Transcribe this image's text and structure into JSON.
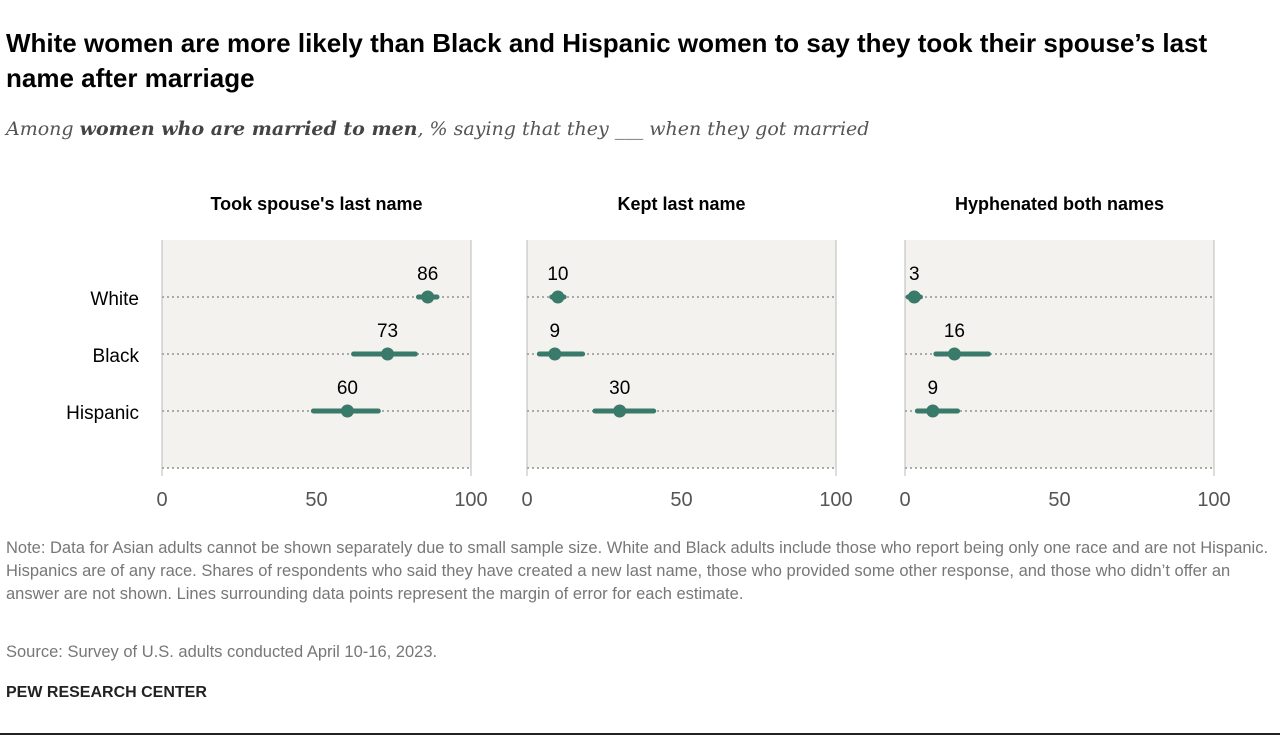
{
  "title": "White women are more likely than Black and Hispanic women to say they took their spouse’s last name after marriage",
  "subtitle": {
    "pre": "Among ",
    "bold": "women who are married to men",
    ",post": "",
    "post_text": ", % saying that they ___ when they got married"
  },
  "note": "Note: Data for Asian adults cannot be shown separately due to small sample size. White and Black adults include those who report being only one race and are not Hispanic. Hispanics are of any race. Shares of respondents who said they have created a new last name, those who provided some other response, and those who didn’t offer an answer are not shown. Lines surrounding data points represent the margin of error for each estimate.",
  "source": "Source: Survey of U.S. adults conducted April 10-16, 2023.",
  "brand": "PEW RESEARCH CENTER",
  "colors": {
    "point": "#3a7a6a",
    "panel": "#f3f2ee"
  },
  "chart_data": [
    {
      "type": "dot",
      "title": "Took spouse's last name",
      "categories": [
        "White",
        "Black",
        "Hispanic"
      ],
      "values": [
        86,
        73,
        60
      ],
      "ci": [
        [
          83,
          89
        ],
        [
          62,
          82
        ],
        [
          49,
          70
        ]
      ],
      "xlim": [
        0,
        100
      ],
      "xticks": [
        0,
        50,
        100
      ]
    },
    {
      "type": "dot",
      "title": "Kept last name",
      "categories": [
        "White",
        "Black",
        "Hispanic"
      ],
      "values": [
        10,
        9,
        30
      ],
      "ci": [
        [
          8,
          12
        ],
        [
          4,
          18
        ],
        [
          22,
          41
        ]
      ],
      "xlim": [
        0,
        100
      ],
      "xticks": [
        0,
        50,
        100
      ]
    },
    {
      "type": "dot",
      "title": "Hyphenated both names",
      "categories": [
        "White",
        "Black",
        "Hispanic"
      ],
      "values": [
        3,
        16,
        9
      ],
      "ci": [
        [
          1,
          5
        ],
        [
          10,
          27
        ],
        [
          4,
          17
        ]
      ],
      "xlim": [
        0,
        100
      ],
      "xticks": [
        0,
        50,
        100
      ]
    }
  ]
}
